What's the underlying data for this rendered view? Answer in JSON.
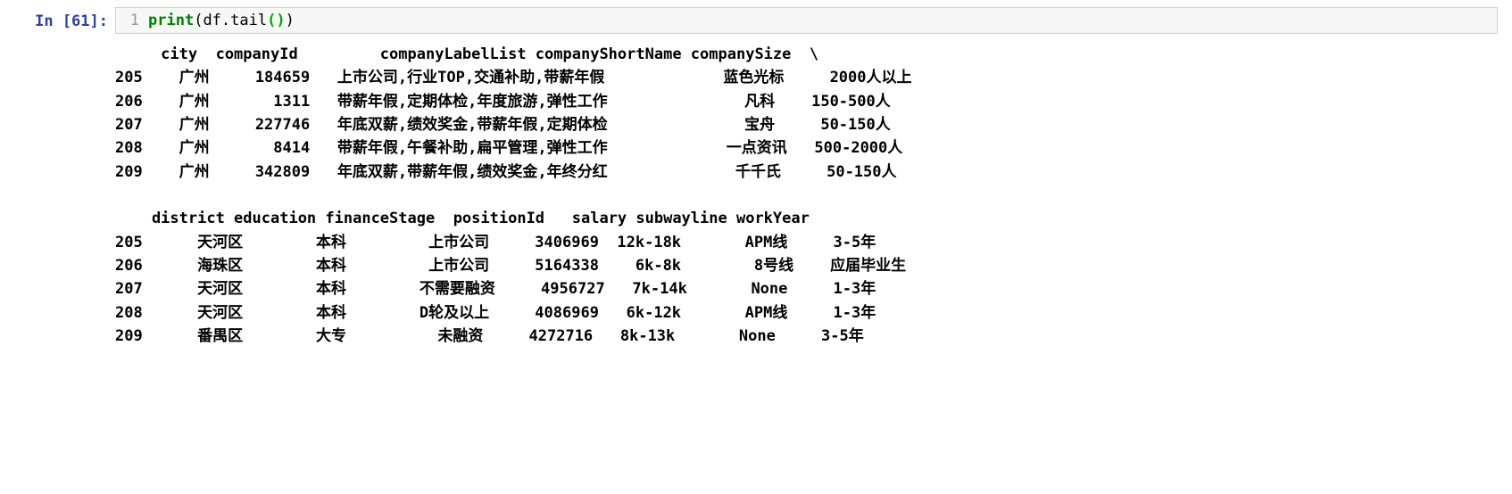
{
  "prompt": "In [61]:",
  "code": {
    "lineno": "1",
    "print_token": "print",
    "open_paren": "(",
    "df_token": "df",
    "dot": ".",
    "tail_token": "tail",
    "inner_open": "(",
    "inner_close": ")",
    "close_paren": ")"
  },
  "output_text": "     city  companyId         companyLabelList companyShortName companySize  \\\n205    广州     184659   上市公司,行业TOP,交通补助,带薪年假             蓝色光标     2000人以上\n206    广州       1311   带薪年假,定期体检,年度旅游,弹性工作               凡科    150-500人\n207    广州     227746   年底双薪,绩效奖金,带薪年假,定期体检               宝舟     50-150人\n208    广州       8414   带薪年假,午餐补助,扁平管理,弹性工作             一点资讯   500-2000人\n209    广州     342809   年底双薪,带薪年假,绩效奖金,年终分红              千千氏     50-150人\n\n    district education financeStage  positionId   salary subwayline workYear\n205      天河区        本科         上市公司     3406969  12k-18k       APM线     3-5年\n206      海珠区        本科         上市公司     5164338    6k-8k        8号线    应届毕业生\n207      天河区        本科        不需要融资     4956727   7k-14k       None     1-3年\n208      天河区        本科        D轮及以上     4086969   6k-12k       APM线     1-3年\n209      番禺区        大专          未融资     4272716   8k-13k       None     3-5年"
}
